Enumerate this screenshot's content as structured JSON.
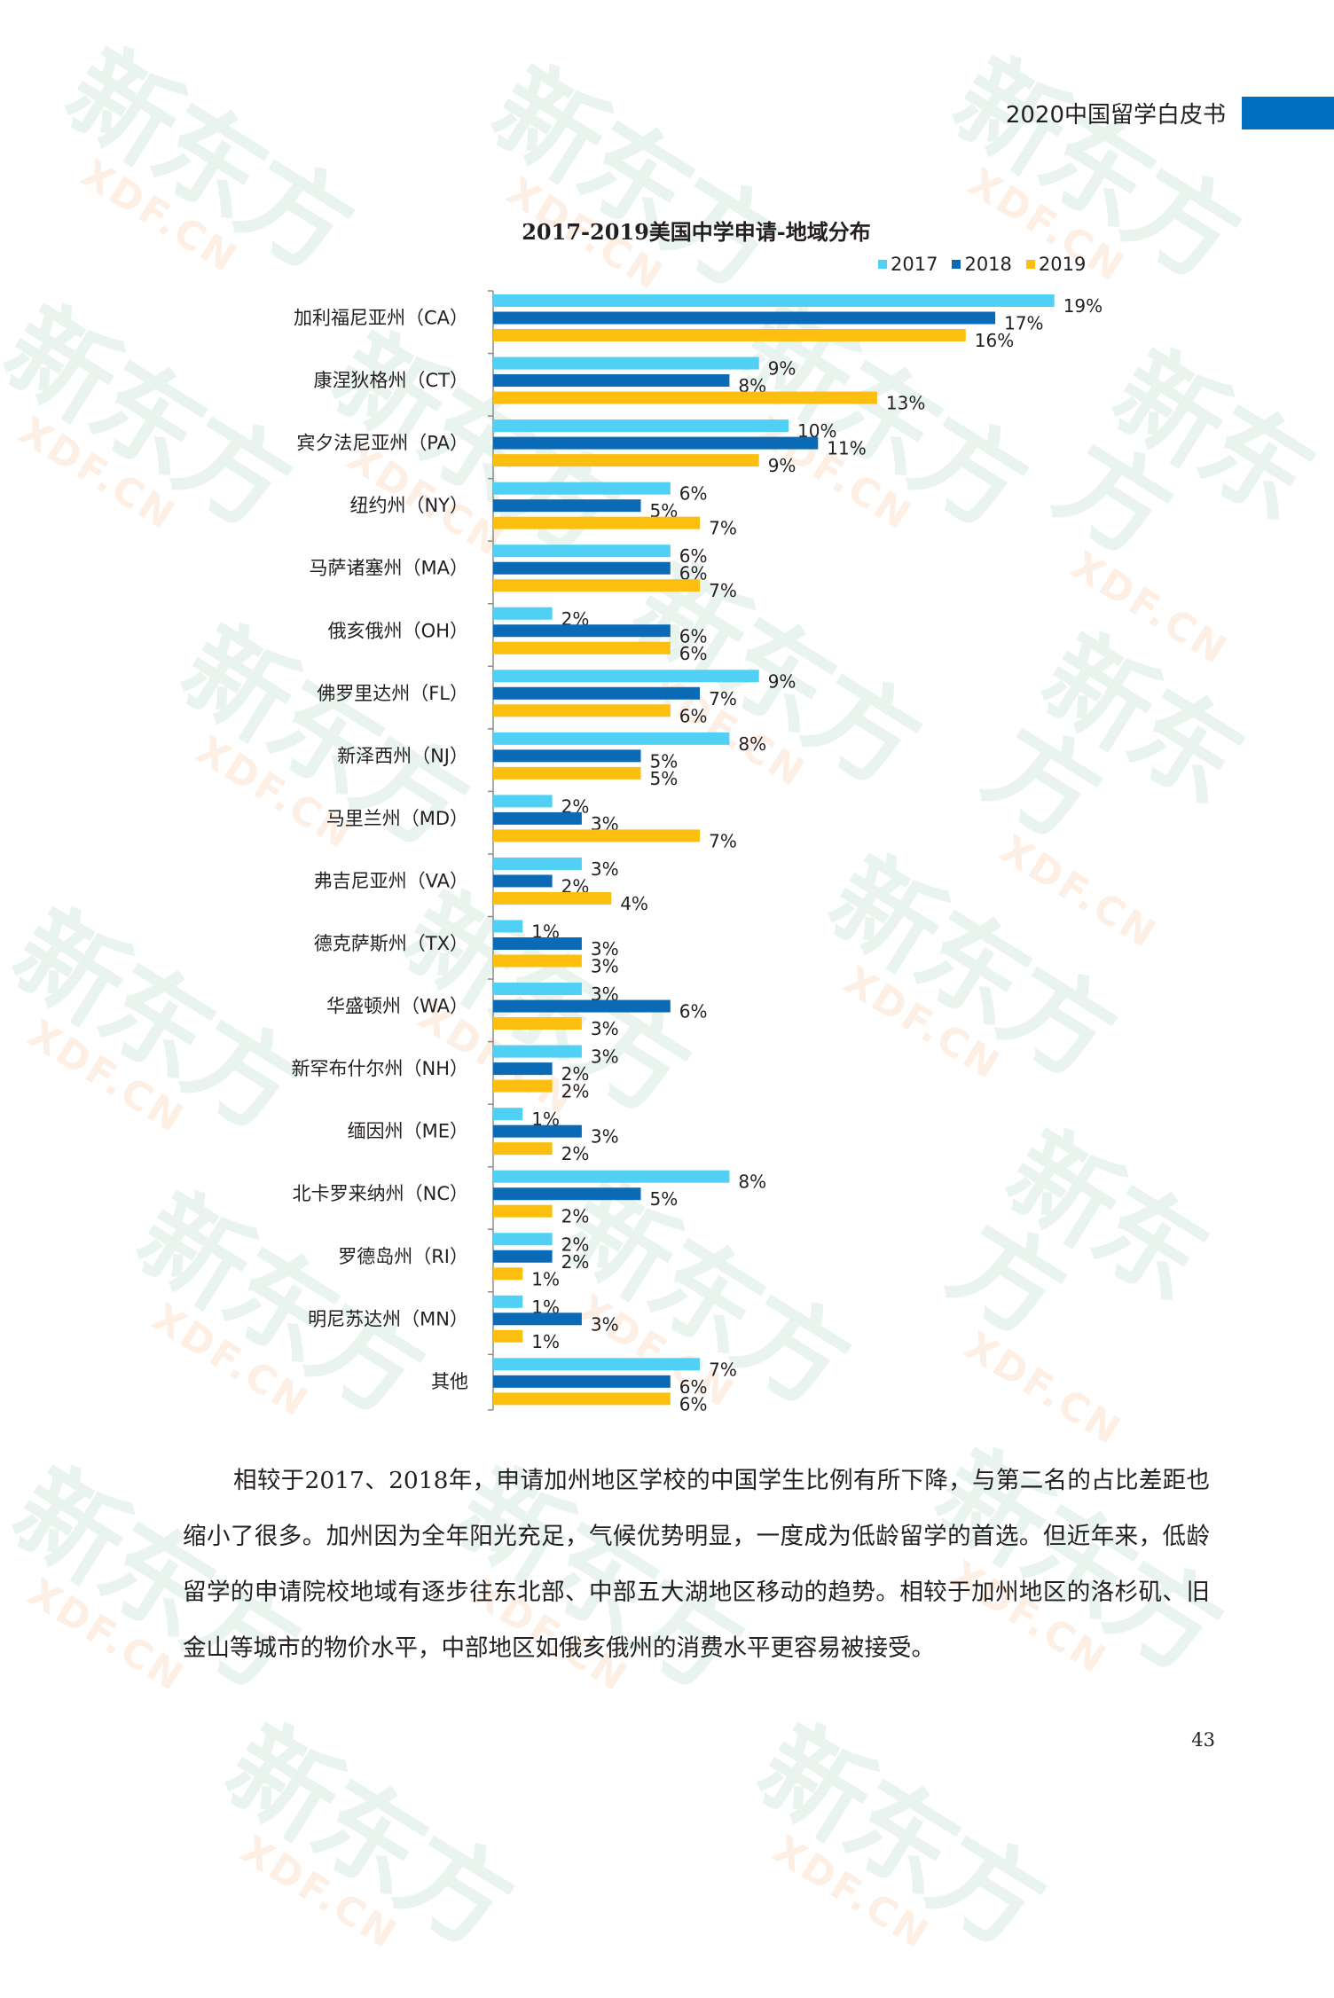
{
  "header": {
    "title": "2020中国留学白皮书",
    "accent_color": "#0070c0"
  },
  "watermark": {
    "main": "新东方",
    "sub": "XDF.CN"
  },
  "chart_data": {
    "type": "bar",
    "orientation": "horizontal",
    "title": "2017-2019美国中学申请-地域分布",
    "legend_position": "top-right",
    "grid": false,
    "xlim": [
      0,
      20
    ],
    "value_format": "percent",
    "categories": [
      "加利福尼亚州（CA）",
      "康涅狄格州（CT）",
      "宾夕法尼亚州（PA）",
      "纽约州（NY）",
      "马萨诸塞州（MA）",
      "俄亥俄州（OH）",
      "佛罗里达州（FL）",
      "新泽西州（NJ）",
      "马里兰州（MD）",
      "弗吉尼亚州（VA）",
      "德克萨斯州（TX）",
      "华盛顿州（WA）",
      "新罕布什尔州（NH）",
      "缅因州（ME）",
      "北卡罗来纳州（NC）",
      "罗德岛州（RI）",
      "明尼苏达州（MN）",
      "其他"
    ],
    "series": [
      {
        "name": "2017",
        "color": "#4fd0f4",
        "values": [
          19,
          9,
          10,
          6,
          6,
          2,
          9,
          8,
          2,
          3,
          1,
          3,
          3,
          1,
          8,
          2,
          1,
          7
        ],
        "labels": [
          "19%",
          "9%",
          "10%",
          "6%",
          "6%",
          "2%",
          "9%",
          "8%",
          "2%",
          "3%",
          "1%",
          "3%",
          "3%",
          "1%",
          "8%",
          "2%",
          "1%",
          "7%"
        ]
      },
      {
        "name": "2018",
        "color": "#0a6ab6",
        "values": [
          17,
          8,
          11,
          5,
          6,
          6,
          7,
          5,
          3,
          2,
          3,
          6,
          2,
          3,
          5,
          2,
          3,
          6
        ],
        "labels": [
          "17%",
          "8%",
          "11%",
          "5%",
          "6%",
          "6%",
          "7%",
          "5%",
          "3%",
          "2%",
          "3%",
          "6%",
          "2%",
          "3%",
          "5%",
          "2%",
          "3%",
          "6%"
        ]
      },
      {
        "name": "2019",
        "color": "#fcbf10",
        "values": [
          16,
          13,
          9,
          7,
          7,
          6,
          6,
          5,
          7,
          4,
          3,
          3,
          2,
          2,
          2,
          1,
          1,
          6
        ],
        "labels": [
          "16%",
          "13%",
          "9%",
          "7%",
          "7%",
          "6%",
          "6%",
          "5%",
          "7%",
          "4%",
          "3%",
          "3%",
          "2%",
          "2%",
          "2%",
          "1%",
          "1%",
          "6%"
        ]
      }
    ]
  },
  "body": {
    "paragraph": "相较于2017、2018年，申请加州地区学校的中国学生比例有所下降，与第二名的占比差距也缩小了很多。加州因为全年阳光充足，气候优势明显，一度成为低龄留学的首选。但近年来，低龄留学的申请院校地域有逐步往东北部、中部五大湖地区移动的趋势。相较于加州地区的洛杉矶、旧金山等城市的物价水平，中部地区如俄亥俄州的消费水平更容易被接受。"
  },
  "page_number": "43"
}
